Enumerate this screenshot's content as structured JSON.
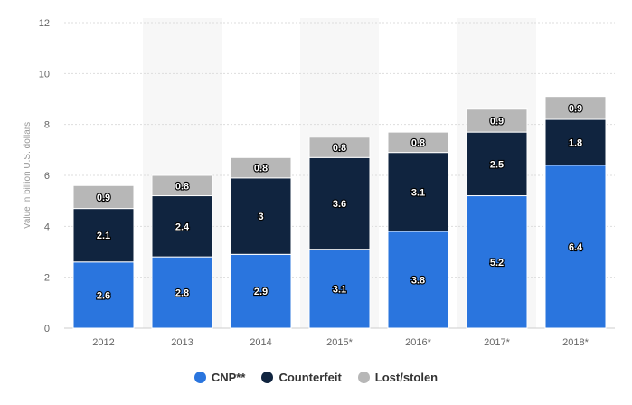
{
  "chart_data": {
    "type": "bar",
    "stacked": true,
    "categories": [
      "2012",
      "2013",
      "2014",
      "2015*",
      "2016*",
      "2017*",
      "2018*"
    ],
    "series": [
      {
        "name": "CNP**",
        "color": "#2a75de",
        "values": [
          2.6,
          2.8,
          2.9,
          3.1,
          3.8,
          5.2,
          6.4
        ],
        "labels": [
          "2.6",
          "2.8",
          "2.9",
          "3.1",
          "3.8",
          "5.2",
          "6.4"
        ]
      },
      {
        "name": "Counterfeit",
        "color": "#10243f",
        "values": [
          2.1,
          2.4,
          3.0,
          3.6,
          3.1,
          2.5,
          1.8
        ],
        "labels": [
          "2.1",
          "2.4",
          "3",
          "3.6",
          "3.1",
          "2.5",
          "1.8"
        ]
      },
      {
        "name": "Lost/stolen",
        "color": "#b7b7b7",
        "values": [
          0.9,
          0.8,
          0.8,
          0.8,
          0.8,
          0.9,
          0.9
        ],
        "labels": [
          "0.9",
          "0.8",
          "0.8",
          "0.8",
          "0.8",
          "0.9",
          "0.9"
        ]
      }
    ],
    "ylabel": "Value in billion U.S. dollars",
    "xlabel": "",
    "ylim": [
      0,
      12
    ],
    "yticks": [
      "0",
      "2",
      "4",
      "6",
      "8",
      "10",
      "12"
    ],
    "grid": true,
    "legend": "bottom-center"
  }
}
